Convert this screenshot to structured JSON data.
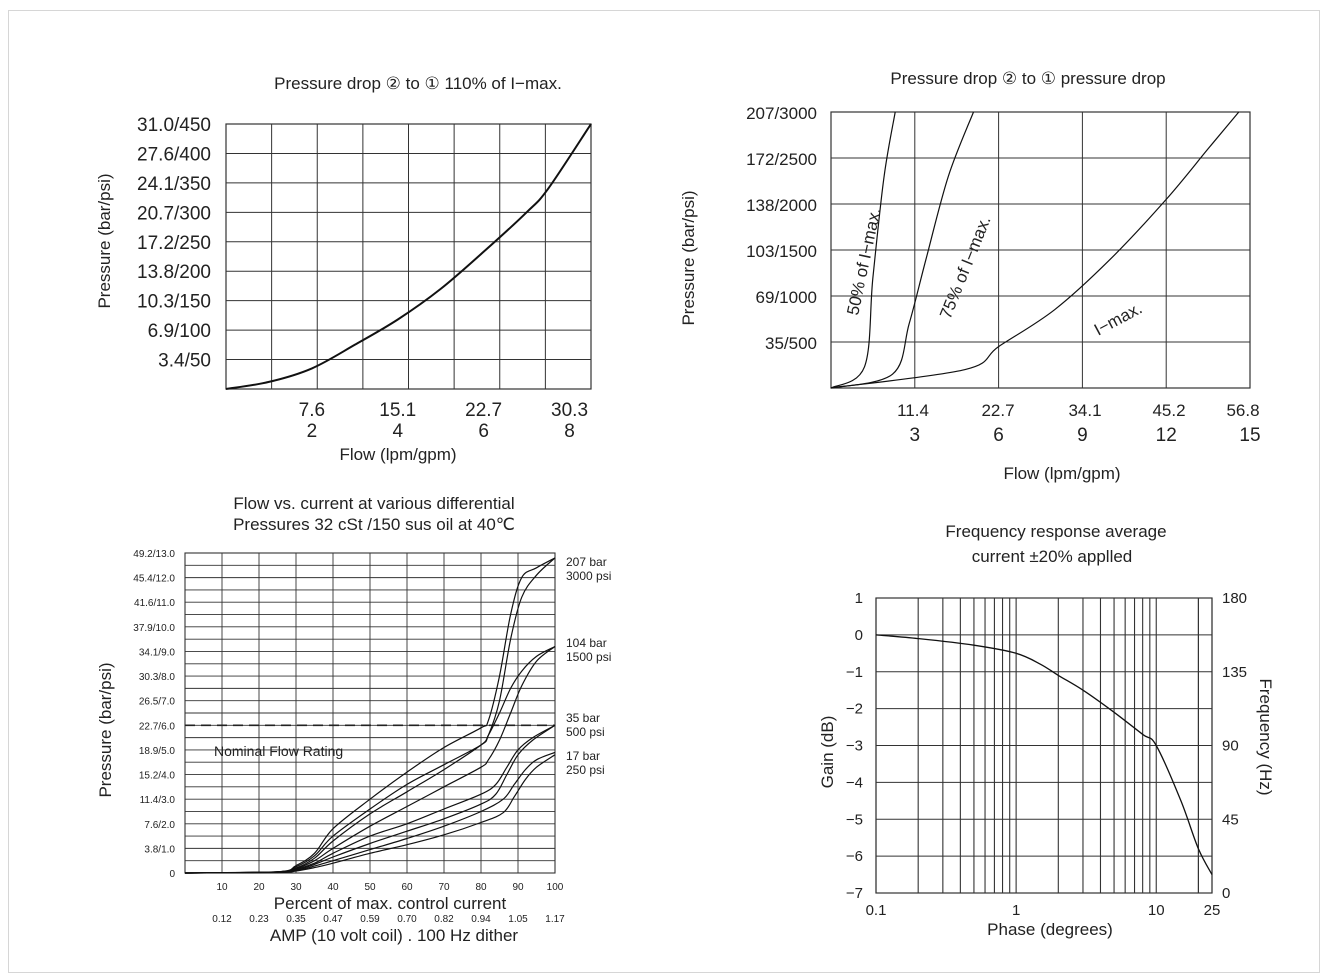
{
  "chart_data": [
    {
      "id": "c1",
      "type": "line",
      "title": "Pressure drop ② to ① 110% of I−max.",
      "ylabel": "Pressure (bar/psi)",
      "xlabel": "Flow (lpm/gpm)",
      "y_ticks": [
        "3.4/50",
        "6.9/100",
        "10.3/150",
        "13.8/200",
        "17.2/250",
        "20.7/300",
        "24.1/350",
        "27.6/400",
        "31.0/450"
      ],
      "x_ticks_top": [
        "7.6",
        "15.1",
        "22.7",
        "30.3"
      ],
      "x_ticks_bottom": [
        "2",
        "4",
        "6",
        "8"
      ],
      "xlim": [
        0,
        8.5
      ],
      "ylim": [
        0,
        450
      ],
      "grid": true,
      "series": [
        {
          "x": [
            0,
            1,
            2,
            3,
            4,
            5,
            6,
            7,
            7.5,
            8.5
          ],
          "y": [
            0,
            12,
            35,
            75,
            118,
            170,
            233,
            300,
            340,
            450
          ]
        }
      ]
    },
    {
      "id": "c2",
      "type": "line",
      "title": "Pressure drop ② to ① pressure drop",
      "ylabel": "Pressure (bar/psi)",
      "xlabel": "Flow (lpm/gpm)",
      "y_ticks": [
        "35/500",
        "69/1000",
        "103/1500",
        "138/2000",
        "172/2500",
        "207/3000"
      ],
      "x_ticks_top": [
        "11.4",
        "22.7",
        "34.1",
        "45.2",
        "56.8"
      ],
      "x_ticks_bottom": [
        "3",
        "6",
        "9",
        "12",
        "15"
      ],
      "xlim": [
        0,
        15
      ],
      "ylim": [
        0,
        3000
      ],
      "grid": true,
      "series": [
        {
          "name": "50% of I−max.",
          "x": [
            0,
            1.2,
            1.5,
            1.9,
            2.3
          ],
          "y": [
            0,
            230,
            1200,
            2300,
            3000
          ]
        },
        {
          "name": "75% of I−max.",
          "x": [
            0,
            2.2,
            2.8,
            3.4,
            4.2,
            5.1
          ],
          "y": [
            0,
            150,
            700,
            1400,
            2300,
            3000
          ]
        },
        {
          "name": "I−max.",
          "x": [
            0,
            4.8,
            6,
            8,
            10,
            12,
            13.5,
            14.6
          ],
          "y": [
            0,
            200,
            450,
            850,
            1400,
            2050,
            2600,
            3000
          ]
        }
      ]
    },
    {
      "id": "c3",
      "type": "line",
      "title_line1": "Flow vs. current at various differential",
      "title_line2": "Pressures 32 cSt /150 sus oil at  40℃",
      "ylabel": "Pressure (bar/psi)",
      "xlabel": "Percent of max. control current",
      "xlabel2": "AMP (10 volt coil) . 100 Hz dither",
      "y_ticks": [
        "0",
        "3.8/1.0",
        "7.6/2.0",
        "11.4/3.0",
        "15.2/4.0",
        "18.9/5.0",
        "22.7/6.0",
        "26.5/7.0",
        "30.3/8.0",
        "34.1/9.0",
        "37.9/10.0",
        "41.6/11.0",
        "45.4/12.0",
        "49.2/13.0"
      ],
      "x_ticks": [
        "10",
        "20",
        "30",
        "40",
        "50",
        "60",
        "70",
        "80",
        "90",
        "100"
      ],
      "x_ticks_amp": [
        "0.12",
        "0.23",
        "0.35",
        "0.47",
        "0.59",
        "0.70",
        "0.82",
        "0.94",
        "1.05",
        "1.17"
      ],
      "xlim": [
        0,
        100
      ],
      "ylim": [
        0,
        13
      ],
      "dashed_line_y": 6.0,
      "annotation": "Nominal Flow Rating",
      "grid": true,
      "curve_labels": [
        {
          "line1": "207 bar",
          "line2": "3000 psi"
        },
        {
          "line1": "104 bar",
          "line2": "1500 psi"
        },
        {
          "line1": "35 bar",
          "line2": "500 psi"
        },
        {
          "line1": "17 bar",
          "line2": "250 psi"
        }
      ],
      "series": [
        {
          "x": [
            0,
            25,
            30,
            35,
            40,
            50,
            60,
            70,
            80,
            82,
            85,
            88,
            91,
            95,
            100
          ],
          "y": [
            0,
            0.05,
            0.3,
            0.8,
            1.8,
            3.0,
            4.1,
            5.1,
            5.9,
            6.2,
            8.0,
            10.5,
            12.0,
            12.4,
            12.8
          ]
        },
        {
          "x": [
            0,
            25,
            30,
            35,
            40,
            50,
            60,
            70,
            80,
            82,
            85,
            88,
            91,
            95,
            100
          ],
          "y": [
            0,
            0.05,
            0.25,
            0.7,
            1.5,
            2.6,
            3.6,
            4.4,
            5.2,
            5.6,
            7.0,
            9.5,
            11.2,
            12.1,
            12.8
          ]
        },
        {
          "x": [
            0,
            25,
            30,
            35,
            40,
            50,
            60,
            70,
            80,
            82,
            85,
            88,
            91,
            95,
            100
          ],
          "y": [
            0,
            0.05,
            0.2,
            0.6,
            1.3,
            2.4,
            3.3,
            4.2,
            5.2,
            5.6,
            6.5,
            7.5,
            8.2,
            8.8,
            9.2
          ]
        },
        {
          "x": [
            0,
            25,
            30,
            35,
            40,
            50,
            60,
            70,
            80,
            82,
            85,
            88,
            91,
            95,
            100
          ],
          "y": [
            0,
            0.05,
            0.18,
            0.5,
            1.0,
            1.9,
            2.7,
            3.5,
            4.3,
            4.6,
            5.4,
            6.5,
            7.6,
            8.6,
            9.2
          ]
        },
        {
          "x": [
            0,
            25,
            30,
            35,
            40,
            50,
            60,
            70,
            80,
            84,
            87,
            90,
            94,
            100
          ],
          "y": [
            0,
            0.04,
            0.15,
            0.4,
            0.8,
            1.5,
            2.0,
            2.6,
            3.2,
            3.6,
            4.3,
            5.0,
            5.5,
            6.0
          ]
        },
        {
          "x": [
            0,
            25,
            30,
            35,
            40,
            50,
            60,
            70,
            80,
            84,
            87,
            90,
            94,
            100
          ],
          "y": [
            0,
            0.03,
            0.12,
            0.35,
            0.65,
            1.2,
            1.7,
            2.2,
            2.8,
            3.2,
            4.0,
            4.8,
            5.4,
            6.0
          ]
        },
        {
          "x": [
            0,
            25,
            30,
            35,
            40,
            50,
            60,
            70,
            80,
            86,
            89,
            92,
            95,
            100
          ],
          "y": [
            0,
            0.03,
            0.1,
            0.28,
            0.5,
            0.95,
            1.4,
            1.9,
            2.5,
            3.0,
            3.6,
            4.2,
            4.6,
            4.9
          ]
        },
        {
          "x": [
            0,
            25,
            30,
            35,
            40,
            50,
            60,
            70,
            80,
            86,
            89,
            92,
            95,
            100
          ],
          "y": [
            0,
            0.02,
            0.08,
            0.22,
            0.4,
            0.8,
            1.15,
            1.55,
            2.05,
            2.45,
            3.1,
            3.8,
            4.3,
            4.8
          ]
        }
      ]
    },
    {
      "id": "c4",
      "type": "line",
      "title_line1": "Frequency response average",
      "title_line2": "current  ±20% applled",
      "ylabel_left": "Gain (dB)",
      "ylabel_right": "Frequency (Hz)",
      "xlabel": "Phase (degrees)",
      "x_scale": "log",
      "xlim": [
        0.1,
        25
      ],
      "ylim": [
        -7,
        1
      ],
      "y_ticks_left": [
        "1",
        "0",
        "−1",
        "−2",
        "−3",
        "−4",
        "−5",
        "−6",
        "−7"
      ],
      "y_ticks_right": [
        "180",
        "135",
        "90",
        "45",
        "0"
      ],
      "x_ticks": [
        "0.1",
        "1",
        "10",
        "25"
      ],
      "grid": true,
      "series": [
        {
          "x": [
            0.1,
            0.2,
            0.5,
            1,
            1.5,
            2,
            3,
            5,
            8,
            10,
            15,
            20,
            25
          ],
          "y": [
            0,
            -0.1,
            -0.28,
            -0.5,
            -0.8,
            -1.1,
            -1.5,
            -2.1,
            -2.7,
            -3.0,
            -4.5,
            -5.8,
            -6.5
          ]
        }
      ]
    }
  ]
}
